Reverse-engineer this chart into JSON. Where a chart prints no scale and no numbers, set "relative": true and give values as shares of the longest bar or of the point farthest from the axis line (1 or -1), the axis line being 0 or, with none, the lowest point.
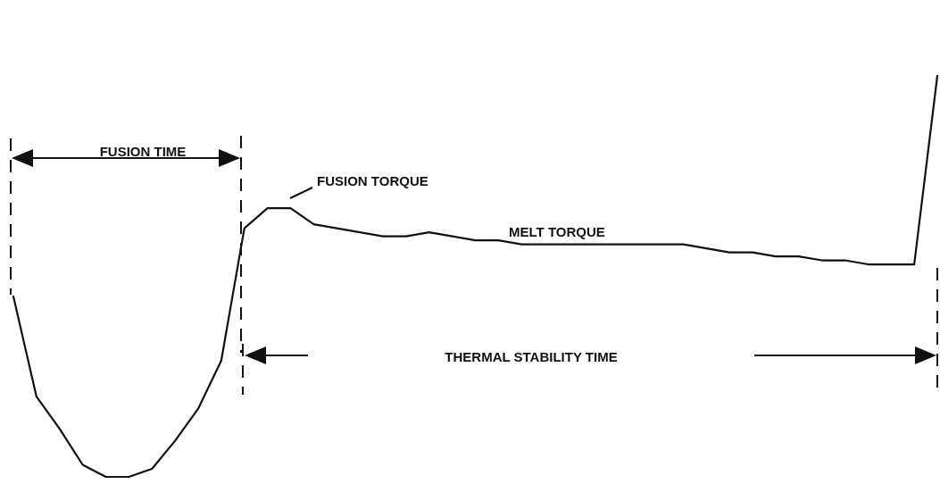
{
  "chart_data": {
    "type": "line",
    "relative": true,
    "color": "#111111",
    "categories": [
      null,
      null,
      null,
      null,
      null,
      null,
      null,
      null,
      null,
      null,
      null,
      null,
      null,
      null,
      null,
      null,
      null,
      null,
      null,
      null,
      null,
      null,
      null,
      null,
      null,
      null,
      null,
      null,
      null,
      null,
      null,
      null,
      null,
      null,
      null,
      null,
      null,
      null,
      null,
      null,
      null
    ],
    "values": [
      0.45,
      0.2,
      0.12,
      0.03,
      0.0,
      0,
      0.02,
      0.09,
      0.17,
      0.29,
      0.62,
      0.67,
      0.67,
      0.63,
      0.62,
      0.61,
      0.6,
      0.6,
      0.61,
      0.6,
      0.59,
      0.59,
      0.58,
      0.58,
      0.58,
      0.58,
      0.58,
      0.58,
      0.58,
      0.58,
      0.57,
      0.56,
      0.56,
      0.55,
      0.55,
      0.54,
      0.54,
      0.53,
      0.53,
      0.53,
      1
    ],
    "annotations": [
      "FUSION TIME",
      "FUSION TORQUE",
      "MELT TORQUE",
      "THERMAL STABILITY TIME"
    ]
  }
}
